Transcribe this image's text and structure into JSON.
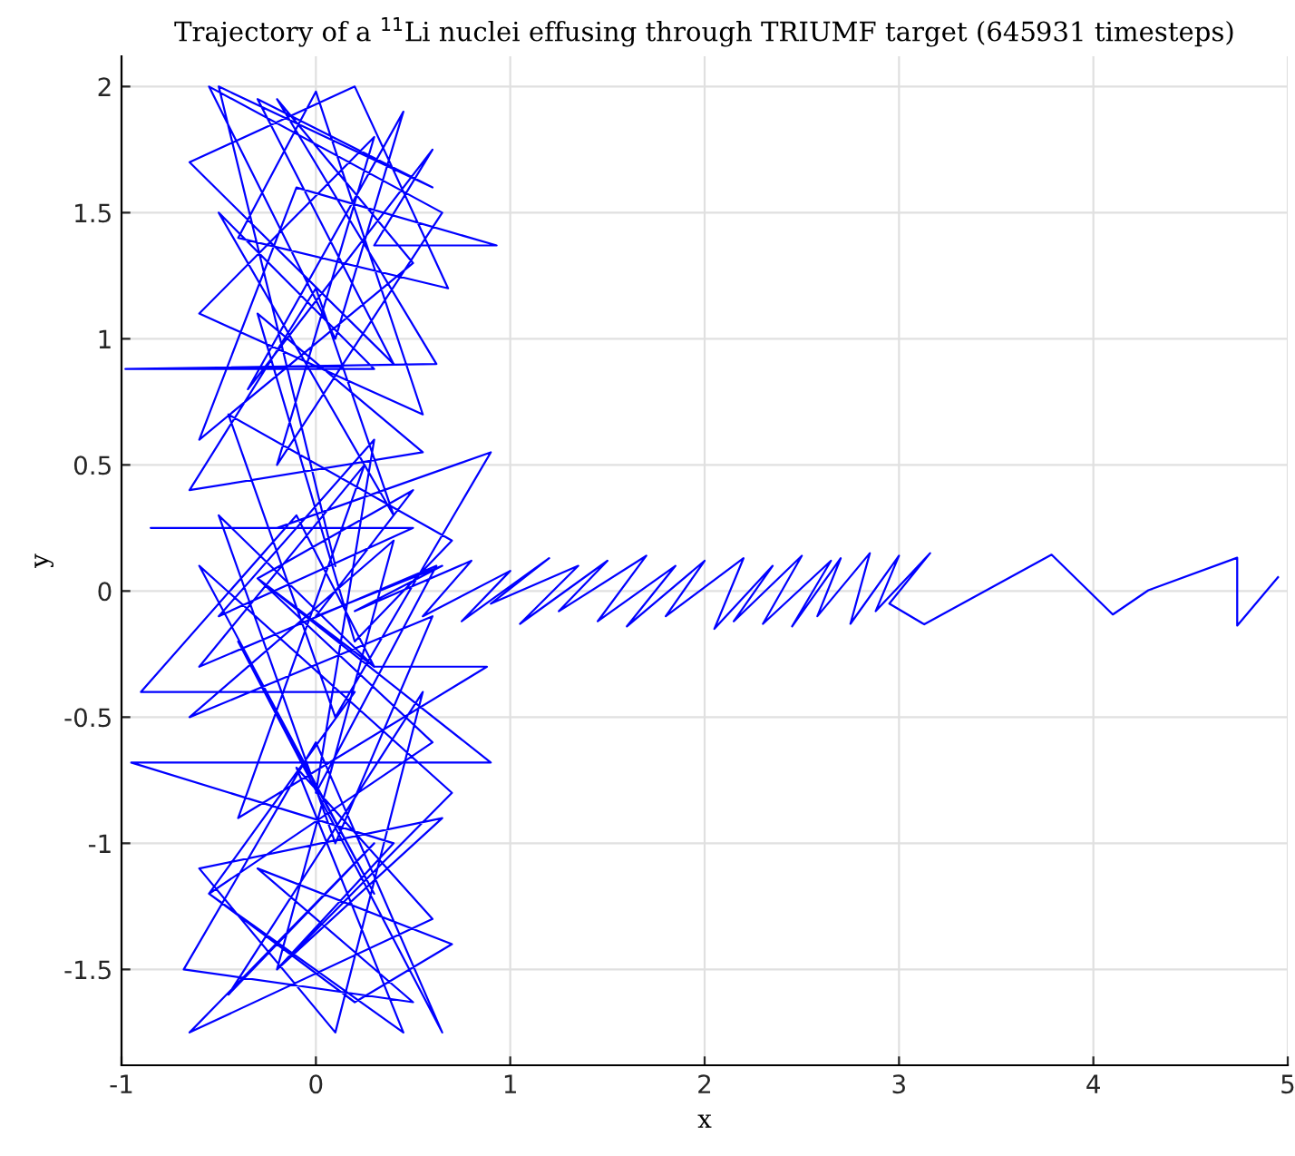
{
  "chart_data": {
    "type": "line",
    "title": "Trajectory of a $^{11}$Li nuclei effusing through TRIUMF target (645931 timesteps)",
    "xlabel": "x",
    "ylabel": "y",
    "xlim": [
      -1,
      5
    ],
    "ylim": [
      -1.88,
      2.12
    ],
    "xticks": [
      -1,
      0,
      1,
      2,
      3,
      4,
      5
    ],
    "yticks": [
      -1.5,
      -1,
      -0.5,
      0,
      0.5,
      1,
      1.5,
      2
    ],
    "grid": true,
    "marker": "none",
    "line_style": "solid",
    "series": [
      {
        "color": "#0000ff",
        "x": [
          0.1,
          -0.5,
          0.6,
          -0.3,
          0.4,
          -0.65,
          0.2,
          0.68,
          -0.4,
          0.0,
          0.55,
          -0.6,
          0.3,
          -0.2,
          0.65,
          -0.55,
          0.1,
          0.45,
          -0.35,
          0.6,
          0.3,
          0.93,
          -0.1,
          -0.6,
          0.5,
          -0.2,
          0.62,
          -0.98,
          0.3,
          -0.5,
          0.4,
          0.0,
          -0.65,
          0.55,
          -0.3,
          0.2,
          0.7,
          -0.45,
          0.1,
          0.9,
          -0.2,
          -0.85,
          0.5,
          -0.5,
          0.3,
          0.0,
          0.62,
          -0.6,
          0.25,
          -0.4,
          0.88,
          0.3,
          -0.1,
          -0.9,
          0.2,
          -0.55,
          0.6,
          -0.3,
          0.9,
          -0.95,
          0.4,
          -0.2,
          0.65,
          -0.6,
          0.1,
          0.55,
          -0.45,
          0.3,
          -0.65,
          0.6,
          -0.1,
          0.45,
          -0.55,
          0.2,
          0.7,
          -0.3,
          0.5,
          -0.68,
          0.0,
          0.65,
          -0.4,
          0.3,
          -0.6,
          0.7,
          -0.2,
          0.4,
          -0.65,
          0.6,
          0.1,
          -0.5,
          0.3,
          -0.3,
          0.5,
          0.0,
          0.65,
          0.2,
          0.8,
          0.55,
          1.0,
          0.75,
          1.2,
          0.9,
          1.35,
          1.05,
          1.5,
          1.25,
          1.7,
          1.45,
          1.85,
          1.6,
          2.0,
          1.8,
          2.2,
          2.05,
          2.35,
          2.15,
          2.5,
          2.3,
          2.65,
          2.45,
          2.7,
          2.58,
          2.85,
          2.75,
          3.0,
          2.88,
          3.16,
          2.95,
          3.13,
          3.785,
          4.1,
          4.283,
          4.74,
          4.74,
          4.95
        ],
        "values": [
          0.1,
          2.0,
          1.6,
          1.95,
          0.9,
          1.7,
          2.0,
          1.2,
          1.4,
          1.98,
          0.7,
          1.1,
          1.8,
          0.5,
          1.5,
          2.0,
          1.0,
          1.9,
          0.8,
          1.75,
          1.37,
          1.37,
          1.6,
          0.6,
          1.3,
          1.95,
          0.9,
          0.88,
          0.88,
          1.5,
          0.3,
          1.2,
          0.4,
          0.55,
          1.1,
          -0.2,
          0.2,
          0.7,
          -0.5,
          0.55,
          0.25,
          0.25,
          0.25,
          -0.1,
          0.6,
          -0.8,
          0.1,
          -0.3,
          0.5,
          -0.9,
          -0.3,
          -0.3,
          0.3,
          -0.4,
          -0.4,
          -1.2,
          -0.6,
          0.05,
          -0.68,
          -0.68,
          -1.0,
          -1.5,
          -0.9,
          -1.1,
          -1.75,
          -0.4,
          -1.6,
          -1.0,
          -1.75,
          -1.3,
          -0.7,
          -1.75,
          -1.2,
          -1.63,
          -1.4,
          -1.1,
          -1.63,
          -1.5,
          -0.6,
          -1.75,
          -0.2,
          -1.2,
          0.1,
          -0.8,
          -1.5,
          0.2,
          -0.5,
          -0.1,
          -1.0,
          0.3,
          -0.3,
          0.05,
          0.4,
          -0.1,
          0.1,
          -0.08,
          0.12,
          -0.1,
          0.08,
          -0.12,
          0.13,
          -0.05,
          0.1,
          -0.13,
          0.12,
          -0.08,
          0.14,
          -0.12,
          0.1,
          -0.14,
          0.12,
          -0.1,
          0.13,
          -0.15,
          0.1,
          -0.12,
          0.14,
          -0.13,
          0.12,
          -0.14,
          0.13,
          -0.1,
          0.15,
          -0.13,
          0.14,
          -0.08,
          0.15,
          -0.05,
          -0.132,
          0.144,
          -0.093,
          0.003,
          0.132,
          -0.137,
          0.055
        ]
      }
    ]
  }
}
